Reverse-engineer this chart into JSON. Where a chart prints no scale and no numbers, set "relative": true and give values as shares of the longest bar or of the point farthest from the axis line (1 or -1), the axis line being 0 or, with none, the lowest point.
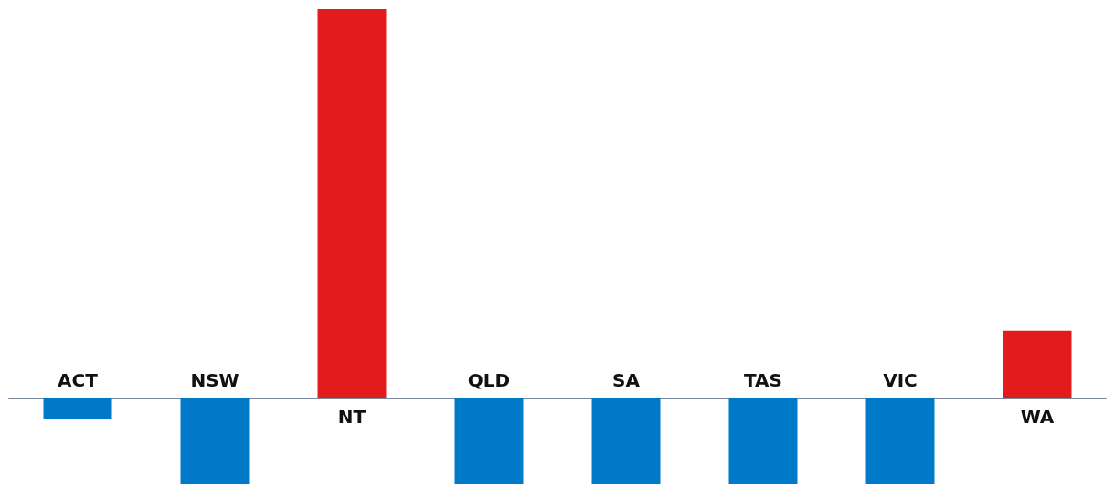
{
  "chart_data": {
    "type": "bar",
    "relative": true,
    "categories": [
      "ACT",
      "NSW",
      "NT",
      "QLD",
      "SA",
      "TAS",
      "VIC",
      "WA"
    ],
    "values": [
      -0.052,
      -0.221,
      1,
      -0.221,
      -0.221,
      -0.221,
      -0.221,
      0.174
    ],
    "colors": [
      "#0079c8",
      "#0079c8",
      "#e31b1d",
      "#0079c8",
      "#0079c8",
      "#0079c8",
      "#0079c8",
      "#e31b1d"
    ],
    "grid": false
  }
}
